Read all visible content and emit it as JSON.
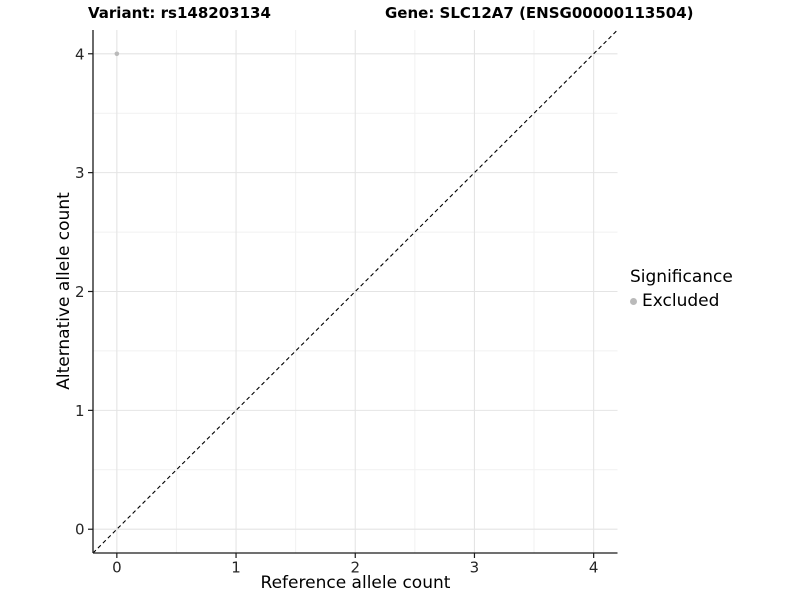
{
  "chart_data": {
    "type": "scatter",
    "title_left": "Variant: rs148203134",
    "title_right": "Gene: SLC12A7 (ENSG00000113504)",
    "xlabel": "Reference allele count",
    "ylabel": "Alternative allele count",
    "xlim": [
      -0.2,
      4.2
    ],
    "ylim": [
      -0.2,
      4.2
    ],
    "x_ticks": [
      0,
      1,
      2,
      3,
      4
    ],
    "y_ticks": [
      0,
      1,
      2,
      3,
      4
    ],
    "x_minor_gridlines": [
      0.5,
      1.5,
      2.5,
      3.5
    ],
    "y_minor_gridlines": [
      0.5,
      1.5,
      2.5,
      3.5
    ],
    "grid": "major and minor, light gray on white panel",
    "identity_line": {
      "slope": 1,
      "intercept": 0,
      "linestyle": "dashed",
      "color": "#000000"
    },
    "series": [
      {
        "name": "Excluded",
        "color": "#bababa",
        "point_radius": 2.3,
        "points": [
          {
            "x": 0,
            "y": 4
          }
        ]
      }
    ],
    "legend": {
      "title": "Significance",
      "position": "right",
      "entries": [
        {
          "label": "Excluded",
          "color": "#bababa"
        }
      ]
    },
    "style": {
      "grid_major_color": "#e4e4e4",
      "grid_minor_color": "#f1f1f1",
      "axis_color": "#1a1a1a",
      "tick_label_color": "#262626",
      "tick_label_size": 15,
      "panel_background": "#ffffff"
    }
  }
}
